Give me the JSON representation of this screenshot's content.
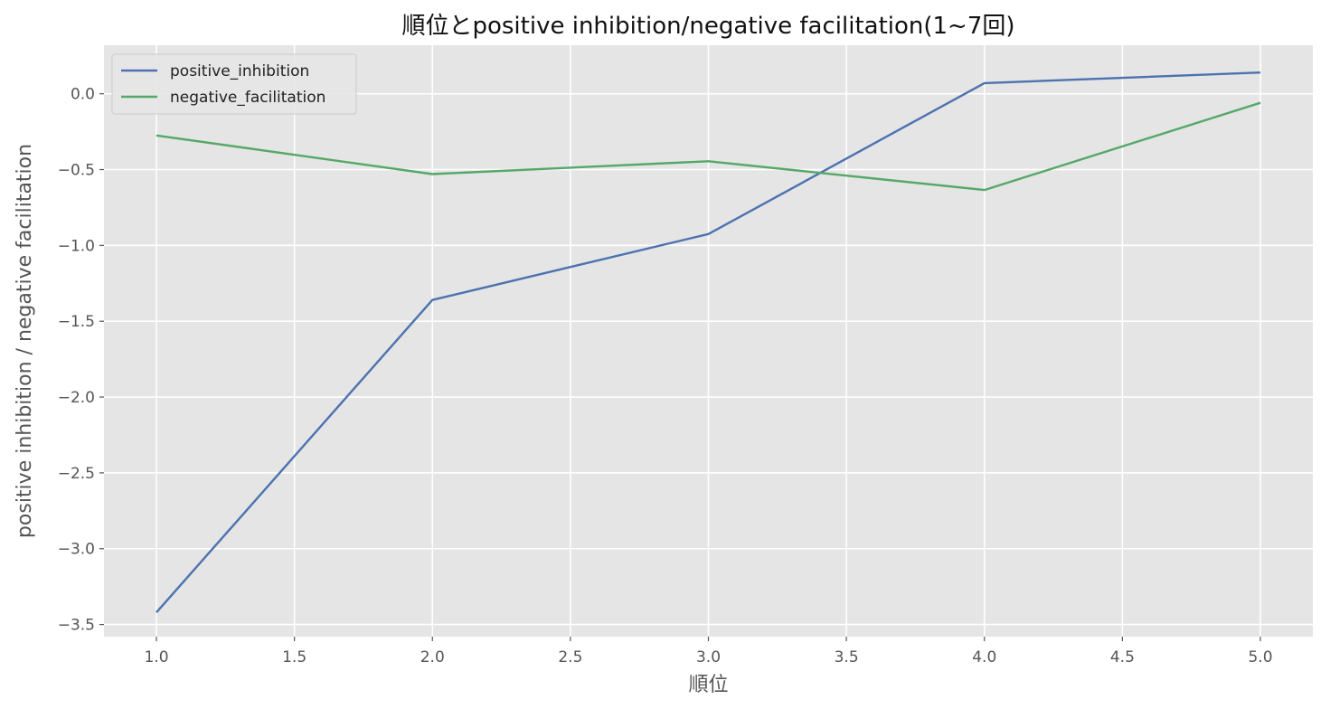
{
  "chart_data": {
    "type": "line",
    "title": "順位とpositive inhibition/negative facilitation(1~7回)",
    "xlabel": "順位",
    "ylabel": "positive inhibition / negative facilitation",
    "x": [
      1.0,
      2.0,
      3.0,
      4.0,
      5.0
    ],
    "series": [
      {
        "name": "positive_inhibition",
        "color": "#4c72b0",
        "values": [
          -3.42,
          -1.36,
          -0.925,
          0.07,
          0.14
        ]
      },
      {
        "name": "negative_facilitation",
        "color": "#55a868",
        "values": [
          -0.275,
          -0.53,
          -0.445,
          -0.635,
          -0.06
        ]
      }
    ],
    "xlim": [
      0.81,
      5.19
    ],
    "ylim": [
      -3.58,
      0.32
    ],
    "xticks": [
      1.0,
      1.5,
      2.0,
      2.5,
      3.0,
      3.5,
      4.0,
      4.5,
      5.0
    ],
    "xtick_labels": [
      "1.0",
      "1.5",
      "2.0",
      "2.5",
      "3.0",
      "3.5",
      "4.0",
      "4.5",
      "5.0"
    ],
    "yticks": [
      0.0,
      -0.5,
      -1.0,
      -1.5,
      -2.0,
      -2.5,
      -3.0,
      -3.5
    ],
    "ytick_labels": [
      "0.0",
      "−0.5",
      "−1.0",
      "−1.5",
      "−2.0",
      "−2.5",
      "−3.0",
      "−3.5"
    ],
    "grid": true,
    "legend_position": "top-left",
    "background_color": "#e5e5e5",
    "grid_color": "#ffffff"
  }
}
